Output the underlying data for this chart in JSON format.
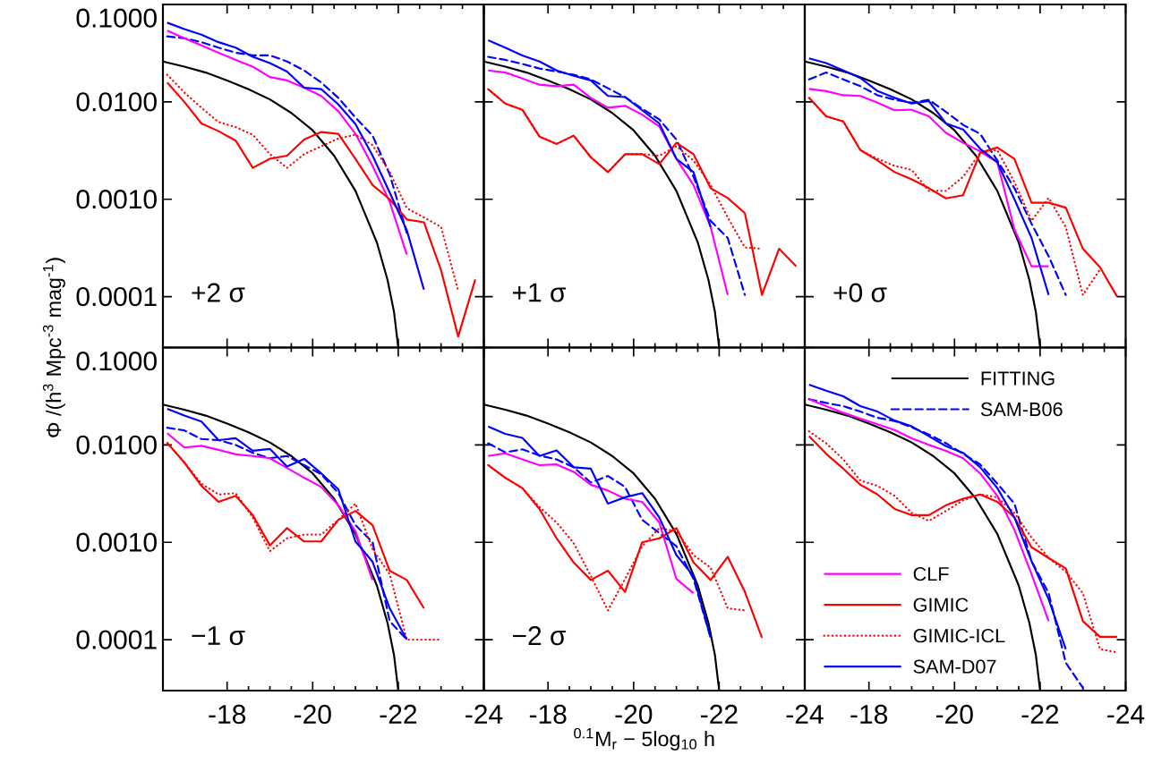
{
  "chart_data": [
    {
      "type": "line",
      "log": "y",
      "tick_labels": "y",
      "annotations": [
        "+2 σ"
      ],
      "x": [
        -16.6,
        -17.0,
        -17.4,
        -17.8,
        -18.2,
        -18.6,
        -19.0,
        -19.4,
        -19.8,
        -20.2,
        -20.6,
        -21.0,
        -21.4,
        -21.8,
        -22.2,
        -22.6,
        -23.0,
        -23.4,
        -23.8
      ],
      "xlim": [
        -16.5,
        -24
      ],
      "xticks": [
        {
          "value": -18,
          "label": null
        },
        {
          "value": -20,
          "label": null
        },
        {
          "value": -22,
          "label": null
        },
        {
          "value": -24,
          "label": null
        }
      ],
      "ylim": [
        3e-05,
        0.1
      ],
      "yticks": [
        {
          "value": 0.1,
          "label": "0.1000"
        },
        {
          "value": 0.01,
          "label": "0.0100"
        },
        {
          "value": 0.001,
          "label": "0.0010"
        },
        {
          "value": 0.0001,
          "label": "0.0001"
        }
      ],
      "series": [
        {
          "color": "#000000",
          "line_style": "solid",
          "x": [
            -16.5,
            -17,
            -17.5,
            -18,
            -18.5,
            -19,
            -19.5,
            -20,
            -20.5,
            -21,
            -21.5,
            -21.75,
            -21.9,
            -22
          ],
          "values": [
            0.026,
            0.023,
            0.02,
            0.0166,
            0.0135,
            0.0106,
            0.0077,
            0.0051,
            0.0028,
            0.00122,
            0.00036,
            0.000148,
            7e-05,
            3e-05
          ]
        },
        {
          "color": "#0000ff",
          "line_style": "dashed",
          "values": [
            0.047,
            0.045,
            0.041,
            0.036,
            0.032,
            0.03,
            0.03,
            0.026,
            0.021,
            0.0158,
            0.011,
            0.0069,
            0.0045,
            0.0018,
            0.00045,
            null,
            null,
            null,
            null
          ]
        },
        {
          "color": "#ff00ff",
          "line_style": "solid",
          "values": [
            0.054,
            0.045,
            0.038,
            0.032,
            0.027,
            0.023,
            0.018,
            0.0166,
            0.014,
            0.0115,
            0.008,
            0.0047,
            0.0022,
            0.00094,
            0.00027,
            null,
            null,
            null,
            null
          ]
        },
        {
          "color": "#ff0000",
          "line_style": "solid",
          "values": [
            0.0158,
            0.01,
            0.006,
            0.005,
            0.004,
            0.0021,
            0.0026,
            0.0028,
            0.0041,
            0.0049,
            0.0047,
            0.0026,
            0.0014,
            0.001,
            0.00062,
            0.00058,
            0.000187,
            3.9e-05,
            0.00015
          ]
        },
        {
          "color": "#ff0000",
          "line_style": "dotted",
          "values": [
            0.019,
            0.0125,
            0.0087,
            0.0062,
            0.0055,
            0.0046,
            0.0029,
            0.0021,
            0.0029,
            0.0035,
            0.0042,
            0.0046,
            0.0036,
            0.0019,
            0.00081,
            0.00065,
            0.00052,
            0.000115,
            null
          ]
        },
        {
          "color": "#0000ff",
          "line_style": "solid",
          "values": [
            0.065,
            0.056,
            0.049,
            0.041,
            0.036,
            0.029,
            0.025,
            0.0205,
            0.014,
            0.0135,
            0.0094,
            0.0059,
            0.0028,
            0.00117,
            0.00048,
            0.000118,
            null,
            null,
            null
          ]
        }
      ]
    },
    {
      "type": "line",
      "log": "y",
      "tick_labels": false,
      "annotations": [
        "+1 σ"
      ],
      "x": [
        -16.6,
        -17.0,
        -17.4,
        -17.8,
        -18.2,
        -18.6,
        -19.0,
        -19.4,
        -19.8,
        -20.2,
        -20.6,
        -21.0,
        -21.4,
        -21.8,
        -22.2,
        -22.6,
        -23.0,
        -23.4,
        -23.8
      ],
      "xlim": [
        -16.5,
        -24
      ],
      "xticks": [
        {
          "value": -18,
          "label": null
        },
        {
          "value": -20,
          "label": null
        },
        {
          "value": -22,
          "label": null
        },
        {
          "value": -24,
          "label": null
        }
      ],
      "ylim": [
        3e-05,
        0.1
      ],
      "yticks": [
        {
          "value": 0.1,
          "label": null
        },
        {
          "value": 0.01,
          "label": null
        },
        {
          "value": 0.001,
          "label": null
        },
        {
          "value": 0.0001,
          "label": null
        }
      ],
      "series": [
        {
          "color": "#000000",
          "line_style": "solid",
          "x": [
            -16.5,
            -17,
            -17.5,
            -18,
            -18.5,
            -19,
            -19.5,
            -20,
            -20.5,
            -21,
            -21.5,
            -21.75,
            -21.9,
            -22
          ],
          "values": [
            0.026,
            0.023,
            0.02,
            0.0166,
            0.0135,
            0.0106,
            0.0077,
            0.0051,
            0.0028,
            0.00122,
            0.00036,
            0.000148,
            7e-05,
            3e-05
          ]
        },
        {
          "color": "#0000ff",
          "line_style": "dashed",
          "values": [
            0.029,
            0.027,
            0.0245,
            0.022,
            0.0205,
            0.019,
            0.017,
            0.0138,
            0.0112,
            0.0085,
            0.0066,
            0.0041,
            0.0017,
            0.0006,
            0.0004,
            0.000104,
            null,
            null,
            null
          ]
        },
        {
          "color": "#ff00ff",
          "line_style": "solid",
          "values": [
            0.021,
            0.02,
            0.0174,
            0.015,
            0.0145,
            0.015,
            0.011,
            0.0087,
            0.0091,
            0.0074,
            0.0056,
            0.0026,
            0.0014,
            0.00052,
            0.000104,
            null,
            null,
            null,
            null
          ]
        },
        {
          "color": "#ff0000",
          "line_style": "solid",
          "values": [
            0.0135,
            0.0096,
            0.0083,
            0.0044,
            0.0037,
            0.0045,
            0.0027,
            0.0019,
            0.0029,
            0.0029,
            0.0023,
            0.0038,
            0.0029,
            0.0013,
            0.00103,
            0.00072,
            0.000104,
            0.00031,
            0.000205
          ]
        },
        {
          "color": "#ff0000",
          "line_style": "dotted",
          "values": [
            0.0135,
            0.0096,
            0.0083,
            0.0044,
            0.0037,
            0.0045,
            0.0027,
            0.0019,
            0.0029,
            0.0029,
            0.0028,
            0.0035,
            0.0025,
            0.0014,
            0.00065,
            0.00032,
            0.00031,
            null,
            null
          ]
        },
        {
          "color": "#0000ff",
          "line_style": "solid",
          "values": [
            0.043,
            0.036,
            0.03,
            0.026,
            0.021,
            0.0185,
            0.0166,
            0.0115,
            0.0112,
            0.0082,
            0.006,
            0.0026,
            0.0019,
            0.00052,
            null,
            null,
            null,
            null,
            null
          ]
        }
      ]
    },
    {
      "type": "line",
      "log": "y",
      "tick_labels": false,
      "annotations": [
        "+0 σ"
      ],
      "x": [
        -16.6,
        -17.0,
        -17.4,
        -17.8,
        -18.2,
        -18.6,
        -19.0,
        -19.4,
        -19.8,
        -20.2,
        -20.6,
        -21.0,
        -21.4,
        -21.8,
        -22.2,
        -22.6,
        -23.0,
        -23.4,
        -23.8
      ],
      "xlim": [
        -16.5,
        -24
      ],
      "xticks": [
        {
          "value": -18,
          "label": null
        },
        {
          "value": -20,
          "label": null
        },
        {
          "value": -22,
          "label": null
        },
        {
          "value": -24,
          "label": null
        }
      ],
      "ylim": [
        3e-05,
        0.1
      ],
      "yticks": [
        {
          "value": 0.1,
          "label": null
        },
        {
          "value": 0.01,
          "label": null
        },
        {
          "value": 0.001,
          "label": null
        },
        {
          "value": 0.0001,
          "label": null
        }
      ],
      "series": [
        {
          "color": "#000000",
          "line_style": "solid",
          "x": [
            -16.5,
            -17,
            -17.5,
            -18,
            -18.5,
            -19,
            -19.5,
            -20,
            -20.5,
            -21,
            -21.5,
            -21.75,
            -21.9,
            -22
          ],
          "values": [
            0.026,
            0.023,
            0.02,
            0.0166,
            0.0135,
            0.0106,
            0.0077,
            0.0051,
            0.0028,
            0.00122,
            0.00036,
            0.000148,
            7e-05,
            3e-05
          ]
        },
        {
          "color": "#0000ff",
          "line_style": "dashed",
          "values": [
            0.017,
            0.02,
            0.017,
            0.0145,
            0.0117,
            0.0105,
            0.0098,
            0.0105,
            0.0079,
            0.0058,
            0.0047,
            0.0025,
            0.0013,
            0.00056,
            0.00026,
            0.000104,
            null,
            null,
            null
          ]
        },
        {
          "color": "#ff00ff",
          "line_style": "solid",
          "values": [
            0.0136,
            0.0129,
            0.0117,
            0.0115,
            0.0098,
            0.0082,
            0.0083,
            0.0071,
            0.0048,
            0.0038,
            0.0031,
            0.0024,
            0.00049,
            0.000205,
            0.000205,
            null,
            null,
            null,
            null
          ]
        },
        {
          "color": "#ff0000",
          "line_style": "solid",
          "values": [
            0.011,
            0.0071,
            0.0063,
            0.0032,
            0.0025,
            0.0019,
            0.0016,
            0.0013,
            0.00102,
            0.0011,
            0.003,
            0.0034,
            0.0026,
            0.00092,
            0.00092,
            0.00082,
            0.00031,
            0.0002,
            0.0001
          ]
        },
        {
          "color": "#ff0000",
          "line_style": "dotted",
          "values": [
            0.011,
            0.0071,
            0.0063,
            0.0032,
            0.0026,
            0.0022,
            0.002,
            0.00122,
            0.00122,
            0.0017,
            0.003,
            0.0032,
            0.0015,
            0.0006,
            0.00103,
            0.00052,
            0.000104,
            0.00019,
            null
          ]
        },
        {
          "color": "#0000ff",
          "line_style": "solid",
          "values": [
            0.028,
            0.025,
            0.021,
            0.0176,
            0.0129,
            0.011,
            0.0096,
            0.0102,
            0.006,
            0.0052,
            0.0033,
            0.0024,
            0.001,
            0.0004,
            0.000104,
            null,
            null,
            null,
            null
          ]
        }
      ]
    },
    {
      "type": "line",
      "log": "y",
      "ylabel": "Φ /(h$^{3}$ Mpc$^{-3}$ mag$^{-1}$)",
      "annotations": [
        "−1 σ"
      ],
      "x": [
        -16.6,
        -17.0,
        -17.4,
        -17.8,
        -18.2,
        -18.6,
        -19.0,
        -19.4,
        -19.8,
        -20.2,
        -20.6,
        -21.0,
        -21.4,
        -21.8,
        -22.2,
        -22.6,
        -23.0
      ],
      "xlim": [
        -16.5,
        -24
      ],
      "xticks": [
        -18,
        -20,
        -22,
        -24
      ],
      "ylim": [
        3e-05,
        0.1
      ],
      "yticks": [
        {
          "value": 0.1,
          "label": "0.1000"
        },
        {
          "value": 0.01,
          "label": "0.0100"
        },
        {
          "value": 0.001,
          "label": "0.0010"
        },
        {
          "value": 0.0001,
          "label": "0.0001"
        }
      ],
      "series": [
        {
          "color": "#000000",
          "line_style": "solid",
          "x": [
            -16.5,
            -17,
            -17.5,
            -18,
            -18.5,
            -19,
            -19.5,
            -20,
            -20.5,
            -21,
            -21.5,
            -21.75,
            -21.9,
            -22
          ],
          "values": [
            0.026,
            0.023,
            0.02,
            0.0166,
            0.0135,
            0.0106,
            0.0077,
            0.0051,
            0.0028,
            0.00122,
            0.00036,
            0.000148,
            7e-05,
            3e-05
          ]
        },
        {
          "color": "#0000ff",
          "line_style": "dashed",
          "values": [
            0.015,
            0.0141,
            0.0115,
            0.0112,
            0.01,
            0.0083,
            0.0073,
            0.0077,
            0.0062,
            0.005,
            0.0032,
            0.0015,
            0.001,
            0.000155,
            0.0001,
            null,
            null
          ]
        },
        {
          "color": "#ff00ff",
          "line_style": "solid",
          "values": [
            0.0132,
            0.0094,
            0.0098,
            0.0089,
            0.008,
            0.0077,
            0.0073,
            0.0058,
            0.0046,
            0.0037,
            0.0024,
            0.0013,
            0.00041,
            null,
            null,
            null,
            null
          ]
        },
        {
          "color": "#ff0000",
          "line_style": "solid",
          "values": [
            0.0105,
            0.0066,
            0.0038,
            0.0026,
            0.003,
            0.0019,
            0.00093,
            0.0014,
            0.00102,
            0.00102,
            0.0017,
            0.0021,
            0.0015,
            0.00051,
            0.00041,
            0.00021,
            null
          ]
        },
        {
          "color": "#ff0000",
          "line_style": "dotted",
          "values": [
            0.0105,
            0.0066,
            0.004,
            0.0031,
            0.0032,
            0.0018,
            0.00081,
            0.0011,
            0.0012,
            0.0012,
            0.0017,
            0.0025,
            0.00085,
            0.00047,
            0.0001,
            0.0001,
            0.0001
          ]
        },
        {
          "color": "#0000ff",
          "line_style": "solid",
          "values": [
            0.0235,
            0.02,
            0.0174,
            0.0112,
            0.0117,
            0.0087,
            0.0091,
            0.006,
            0.0072,
            0.0051,
            0.0035,
            0.00102,
            0.00063,
            0.00021,
            0.0001,
            null,
            null
          ]
        }
      ]
    },
    {
      "type": "line",
      "log": "y",
      "tick_labels": "x",
      "xlabel": "$^{0.1}$M$_{r}$ − 5log$_{10}$ h",
      "annotations": [
        "−2 σ"
      ],
      "x": [
        -16.6,
        -17.0,
        -17.4,
        -17.8,
        -18.2,
        -18.6,
        -19.0,
        -19.4,
        -19.8,
        -20.2,
        -20.6,
        -21.0,
        -21.4,
        -21.8,
        -22.2,
        -22.6,
        -23.0
      ],
      "xlim": [
        -16.5,
        -24
      ],
      "xticks": [
        -18,
        -20,
        -22,
        -24
      ],
      "ylim": [
        3e-05,
        0.1
      ],
      "yticks": [
        {
          "value": 0.1,
          "label": null
        },
        {
          "value": 0.01,
          "label": null
        },
        {
          "value": 0.001,
          "label": null
        },
        {
          "value": 0.0001,
          "label": null
        }
      ],
      "series": [
        {
          "color": "#000000",
          "line_style": "solid",
          "x": [
            -16.5,
            -17,
            -17.5,
            -18,
            -18.5,
            -19,
            -19.5,
            -20,
            -20.5,
            -21,
            -21.5,
            -21.75,
            -21.9,
            -22
          ],
          "values": [
            0.026,
            0.023,
            0.02,
            0.0166,
            0.0135,
            0.0106,
            0.0077,
            0.0051,
            0.0028,
            0.00122,
            0.00036,
            0.000148,
            7e-05,
            3e-05
          ]
        },
        {
          "color": "#0000ff",
          "line_style": "dashed",
          "values": [
            0.0104,
            0.0084,
            0.009,
            0.0078,
            0.0071,
            0.0059,
            0.0041,
            0.0048,
            0.0037,
            0.0017,
            0.00125,
            0.00091,
            0.00042,
            0.000105,
            null,
            null,
            null
          ]
        },
        {
          "color": "#ff00ff",
          "line_style": "solid",
          "values": [
            0.0077,
            0.0082,
            0.0071,
            0.0062,
            0.0063,
            0.0053,
            0.0039,
            0.0034,
            0.0028,
            0.0026,
            0.0016,
            0.00042,
            0.0003,
            null,
            null,
            null,
            null
          ]
        },
        {
          "color": "#ff0000",
          "line_style": "solid",
          "values": [
            0.0062,
            0.0046,
            0.0036,
            0.0022,
            0.0011,
            0.00062,
            0.00041,
            0.00051,
            0.00031,
            0.001,
            0.0011,
            0.0014,
            0.00062,
            0.00041,
            0.00071,
            0.00031,
            0.000105
          ]
        },
        {
          "color": "#ff0000",
          "line_style": "dotted",
          "values": [
            0.0062,
            0.0046,
            0.0036,
            0.0023,
            0.0016,
            0.00098,
            0.00045,
            0.0002,
            0.00042,
            0.00091,
            0.0014,
            0.0013,
            0.00074,
            0.00055,
            0.00021,
            0.0002,
            null
          ]
        },
        {
          "color": "#0000ff",
          "line_style": "solid",
          "values": [
            0.0155,
            0.013,
            0.0118,
            0.0077,
            0.0088,
            0.0059,
            0.0057,
            0.0025,
            0.0029,
            0.0032,
            0.0018,
            0.00074,
            0.00045,
            0.000105,
            null,
            null,
            null
          ]
        }
      ]
    },
    {
      "type": "line",
      "log": "y",
      "tick_labels": "x",
      "legend": "bottom left",
      "x": [
        -16.6,
        -17.0,
        -17.4,
        -17.8,
        -18.2,
        -18.6,
        -19.0,
        -19.4,
        -19.8,
        -20.2,
        -20.6,
        -21.0,
        -21.4,
        -21.8,
        -22.2,
        -22.6,
        -23.0,
        -23.4,
        -23.8
      ],
      "xlim": [
        -16.5,
        -24
      ],
      "xticks": [
        -18,
        -20,
        -22,
        -24
      ],
      "ylim": [
        3e-05,
        0.1
      ],
      "yticks": [
        {
          "value": 0.1,
          "label": null
        },
        {
          "value": 0.01,
          "label": null
        },
        {
          "value": 0.001,
          "label": null
        },
        {
          "value": 0.0001,
          "label": null
        }
      ],
      "series": [
        {
          "name": "FITTING",
          "color": "#000000",
          "line_style": "solid",
          "x": [
            -16.5,
            -17,
            -17.5,
            -18,
            -18.5,
            -19,
            -19.5,
            -20,
            -20.5,
            -21,
            -21.5,
            -21.75,
            -21.9,
            -22
          ],
          "values": [
            0.026,
            0.023,
            0.02,
            0.0166,
            0.0135,
            0.0106,
            0.0077,
            0.0051,
            0.0028,
            0.00122,
            0.00036,
            0.000148,
            7e-05,
            3e-05
          ]
        },
        {
          "name": "SAM-B06",
          "color": "#0000ff",
          "line_style": "dashed",
          "values": [
            0.0295,
            0.027,
            0.025,
            0.022,
            0.019,
            0.0176,
            0.0152,
            0.0128,
            0.0104,
            0.0081,
            0.0063,
            0.004,
            0.0025,
            0.00064,
            0.0003,
            5.8e-05,
            3.2e-05,
            null,
            null
          ]
        },
        {
          "name": "CLF",
          "color": "#ff00ff",
          "line_style": "solid",
          "values": [
            0.0295,
            0.025,
            0.0214,
            0.0186,
            0.0163,
            0.0142,
            0.0117,
            0.01,
            0.0087,
            0.0073,
            0.0051,
            0.003,
            0.00134,
            0.00047,
            0.000155,
            null,
            null,
            null,
            null
          ]
        },
        {
          "name": "GIMIC",
          "color": "#ff0000",
          "line_style": "solid",
          "values": [
            0.0123,
            0.0081,
            0.0057,
            0.0039,
            0.0031,
            0.0022,
            0.0019,
            0.0019,
            0.0024,
            0.0028,
            0.0031,
            0.0026,
            0.0018,
            0.00089,
            0.00069,
            0.00054,
            0.000155,
            0.000107,
            0.000107
          ]
        },
        {
          "name": "GIMIC-ICL",
          "color": "#ff0000",
          "line_style": "dotted",
          "values": [
            0.0138,
            0.0104,
            0.0071,
            0.0043,
            0.0038,
            0.003,
            0.002,
            0.00166,
            0.0021,
            0.0027,
            0.0031,
            0.0029,
            0.002,
            0.00112,
            0.00069,
            0.0005,
            0.0003,
            8e-05,
            7.4e-05
          ]
        },
        {
          "name": "SAM-D07",
          "color": "#0000ff",
          "line_style": "solid",
          "values": [
            0.0415,
            0.036,
            0.0316,
            0.025,
            0.022,
            0.0178,
            0.0155,
            0.0123,
            0.0097,
            0.0083,
            0.0059,
            0.0036,
            0.0018,
            0.00064,
            0.00026,
            8e-05,
            null,
            null,
            null
          ]
        }
      ]
    }
  ]
}
